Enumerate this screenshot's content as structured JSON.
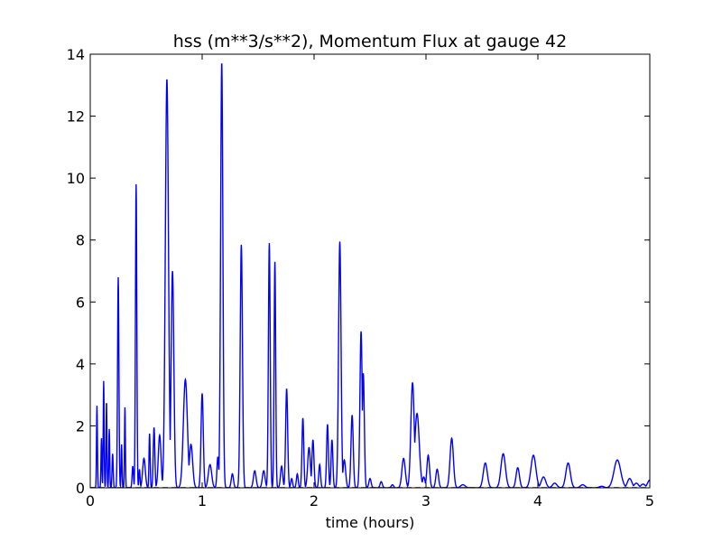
{
  "chart_data": {
    "type": "line",
    "title": "hss (m**3/s**2), Momentum Flux at gauge 42",
    "xlabel": "time (hours)",
    "ylabel": "",
    "xlim": [
      0,
      5
    ],
    "ylim": [
      0,
      14
    ],
    "xticks": [
      0,
      1,
      2,
      3,
      4,
      5
    ],
    "xtick_labels": [
      "0",
      "1",
      "2",
      "3",
      "4",
      "5"
    ],
    "yticks": [
      0,
      2,
      4,
      6,
      8,
      10,
      12,
      14
    ],
    "ytick_labels": [
      "0",
      "2",
      "4",
      "6",
      "8",
      "10",
      "12",
      "14"
    ],
    "grid": false,
    "series": [
      {
        "color": "#0000ff",
        "style": "solid",
        "peaks": [
          [
            0.06,
            2.65,
            0.004
          ],
          [
            0.1,
            1.6,
            0.004
          ],
          [
            0.12,
            3.45,
            0.004
          ],
          [
            0.145,
            2.8,
            0.004
          ],
          [
            0.17,
            1.9,
            0.004
          ],
          [
            0.2,
            1.1,
            0.005
          ],
          [
            0.25,
            6.8,
            0.006
          ],
          [
            0.28,
            1.4,
            0.004
          ],
          [
            0.31,
            2.6,
            0.004
          ],
          [
            0.38,
            0.7,
            0.006
          ],
          [
            0.41,
            9.8,
            0.006
          ],
          [
            0.44,
            0.6,
            0.005
          ],
          [
            0.48,
            0.95,
            0.012
          ],
          [
            0.53,
            1.75,
            0.005
          ],
          [
            0.57,
            1.95,
            0.007
          ],
          [
            0.62,
            1.7,
            0.012
          ],
          [
            0.685,
            13.2,
            0.014
          ],
          [
            0.735,
            7.0,
            0.012
          ],
          [
            0.85,
            3.5,
            0.018
          ],
          [
            0.9,
            1.4,
            0.015
          ],
          [
            1.0,
            3.05,
            0.01
          ],
          [
            1.07,
            0.75,
            0.015
          ],
          [
            1.14,
            1.0,
            0.008
          ],
          [
            1.175,
            13.75,
            0.01
          ],
          [
            1.27,
            0.45,
            0.01
          ],
          [
            1.35,
            7.85,
            0.01
          ],
          [
            1.47,
            0.55,
            0.012
          ],
          [
            1.55,
            0.55,
            0.012
          ],
          [
            1.6,
            7.9,
            0.008
          ],
          [
            1.65,
            7.3,
            0.007
          ],
          [
            1.71,
            0.7,
            0.01
          ],
          [
            1.755,
            3.2,
            0.009
          ],
          [
            1.8,
            0.3,
            0.008
          ],
          [
            1.85,
            0.45,
            0.008
          ],
          [
            1.9,
            2.25,
            0.008
          ],
          [
            1.955,
            1.3,
            0.012
          ],
          [
            1.99,
            1.55,
            0.009
          ],
          [
            2.05,
            0.75,
            0.008
          ],
          [
            2.12,
            2.05,
            0.008
          ],
          [
            2.16,
            1.55,
            0.008
          ],
          [
            2.23,
            7.95,
            0.011
          ],
          [
            2.27,
            0.9,
            0.012
          ],
          [
            2.34,
            2.35,
            0.01
          ],
          [
            2.42,
            5.05,
            0.01
          ],
          [
            2.44,
            3.7,
            0.009
          ],
          [
            2.5,
            0.3,
            0.01
          ],
          [
            2.6,
            0.2,
            0.01
          ],
          [
            2.7,
            0.1,
            0.01
          ],
          [
            2.8,
            0.95,
            0.015
          ],
          [
            2.88,
            3.4,
            0.015
          ],
          [
            2.92,
            2.4,
            0.02
          ],
          [
            2.98,
            0.35,
            0.012
          ],
          [
            3.02,
            1.05,
            0.012
          ],
          [
            3.1,
            0.6,
            0.012
          ],
          [
            3.23,
            1.6,
            0.015
          ],
          [
            3.33,
            0.1,
            0.02
          ],
          [
            3.53,
            0.8,
            0.018
          ],
          [
            3.69,
            1.1,
            0.02
          ],
          [
            3.82,
            0.65,
            0.015
          ],
          [
            3.96,
            1.05,
            0.022
          ],
          [
            4.05,
            0.35,
            0.02
          ],
          [
            4.15,
            0.15,
            0.02
          ],
          [
            4.27,
            0.8,
            0.02
          ],
          [
            4.4,
            0.1,
            0.02
          ],
          [
            4.57,
            0.05,
            0.02
          ],
          [
            4.71,
            0.9,
            0.03
          ],
          [
            4.82,
            0.3,
            0.02
          ],
          [
            4.88,
            0.15,
            0.02
          ],
          [
            4.94,
            0.12,
            0.02
          ],
          [
            5.0,
            0.25,
            0.02
          ]
        ]
      },
      {
        "color": "#000000",
        "style": "dashed",
        "constant": 0
      }
    ]
  }
}
